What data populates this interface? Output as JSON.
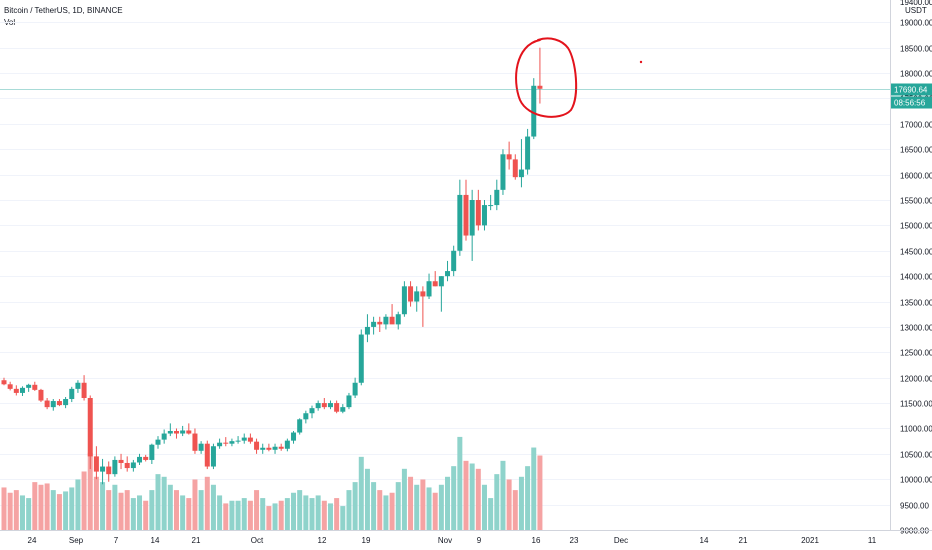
{
  "header": {
    "symbol_line": "Bitcoin / TetherUS, 1D, BINANCE",
    "volume_label": "Vol"
  },
  "price_scale": {
    "currency": "USDT",
    "top_partial_label": "19400.00",
    "last_price_label": "17690.64",
    "countdown_label": "08:56:56"
  },
  "colors": {
    "up": "#26a69a",
    "down": "#ef5350",
    "vol_up": "#8fd3cb",
    "vol_down": "#f5a3a3",
    "annotation": "#e3131c",
    "grid": "#f0f3fa",
    "axis_text": "#131722"
  },
  "annotations": [
    {
      "type": "hand-drawn-circle",
      "around": "last two candles (peak)"
    },
    {
      "type": "dot"
    }
  ],
  "chart_data": {
    "type": "candlestick",
    "title": "Bitcoin / TetherUS, 1D, BINANCE",
    "ylabel": "USDT",
    "ylim": [
      9000,
      19400
    ],
    "y_ticks": [
      9000,
      9500,
      10000,
      10500,
      11000,
      11500,
      12000,
      12500,
      13000,
      13500,
      14000,
      14500,
      15000,
      15500,
      16000,
      16500,
      17000,
      17500,
      18000,
      18500,
      19000
    ],
    "x_ticks": [
      "24",
      "Sep",
      "7",
      "14",
      "21",
      "Oct",
      "12",
      "19",
      "Nov",
      "9",
      "16",
      "23",
      "Dec",
      "14",
      "21",
      "2021",
      "11"
    ],
    "last_price": 17690.64,
    "grid": true,
    "candles": [
      {
        "o": 11950,
        "h": 12000,
        "l": 11850,
        "c": 11870,
        "v": 0.32
      },
      {
        "o": 11870,
        "h": 11920,
        "l": 11750,
        "c": 11780,
        "v": 0.28
      },
      {
        "o": 11780,
        "h": 11850,
        "l": 11650,
        "c": 11700,
        "v": 0.3
      },
      {
        "o": 11700,
        "h": 11830,
        "l": 11640,
        "c": 11800,
        "v": 0.26
      },
      {
        "o": 11800,
        "h": 11880,
        "l": 11720,
        "c": 11860,
        "v": 0.24
      },
      {
        "o": 11860,
        "h": 11920,
        "l": 11740,
        "c": 11760,
        "v": 0.36
      },
      {
        "o": 11760,
        "h": 11780,
        "l": 11520,
        "c": 11550,
        "v": 0.34
      },
      {
        "o": 11550,
        "h": 11600,
        "l": 11380,
        "c": 11420,
        "v": 0.35
      },
      {
        "o": 11420,
        "h": 11580,
        "l": 11350,
        "c": 11540,
        "v": 0.3
      },
      {
        "o": 11540,
        "h": 11580,
        "l": 11440,
        "c": 11460,
        "v": 0.27
      },
      {
        "o": 11460,
        "h": 11620,
        "l": 11400,
        "c": 11580,
        "v": 0.29
      },
      {
        "o": 11580,
        "h": 11820,
        "l": 11520,
        "c": 11780,
        "v": 0.32
      },
      {
        "o": 11780,
        "h": 11950,
        "l": 11700,
        "c": 11900,
        "v": 0.38
      },
      {
        "o": 11900,
        "h": 12050,
        "l": 11550,
        "c": 11600,
        "v": 0.44
      },
      {
        "o": 11600,
        "h": 11650,
        "l": 10200,
        "c": 10450,
        "v": 0.58
      },
      {
        "o": 10450,
        "h": 10650,
        "l": 10000,
        "c": 10150,
        "v": 0.4
      },
      {
        "o": 10150,
        "h": 10400,
        "l": 9900,
        "c": 10250,
        "v": 0.36
      },
      {
        "o": 10250,
        "h": 10350,
        "l": 9950,
        "c": 10100,
        "v": 0.3
      },
      {
        "o": 10100,
        "h": 10450,
        "l": 10050,
        "c": 10380,
        "v": 0.34
      },
      {
        "o": 10380,
        "h": 10500,
        "l": 10200,
        "c": 10320,
        "v": 0.28
      },
      {
        "o": 10320,
        "h": 10450,
        "l": 10150,
        "c": 10220,
        "v": 0.3
      },
      {
        "o": 10220,
        "h": 10380,
        "l": 10150,
        "c": 10330,
        "v": 0.24
      },
      {
        "o": 10330,
        "h": 10500,
        "l": 10280,
        "c": 10440,
        "v": 0.26
      },
      {
        "o": 10440,
        "h": 10480,
        "l": 10350,
        "c": 10380,
        "v": 0.22
      },
      {
        "o": 10380,
        "h": 10700,
        "l": 10300,
        "c": 10680,
        "v": 0.3
      },
      {
        "o": 10680,
        "h": 10850,
        "l": 10600,
        "c": 10780,
        "v": 0.42
      },
      {
        "o": 10780,
        "h": 10980,
        "l": 10700,
        "c": 10900,
        "v": 0.4
      },
      {
        "o": 10900,
        "h": 11100,
        "l": 10850,
        "c": 10950,
        "v": 0.34
      },
      {
        "o": 10950,
        "h": 11000,
        "l": 10800,
        "c": 10900,
        "v": 0.3
      },
      {
        "o": 10900,
        "h": 11050,
        "l": 10850,
        "c": 10960,
        "v": 0.26
      },
      {
        "o": 10960,
        "h": 11100,
        "l": 10880,
        "c": 10900,
        "v": 0.24
      },
      {
        "o": 10900,
        "h": 11000,
        "l": 10500,
        "c": 10560,
        "v": 0.38
      },
      {
        "o": 10560,
        "h": 10750,
        "l": 10500,
        "c": 10700,
        "v": 0.3
      },
      {
        "o": 10700,
        "h": 10760,
        "l": 10200,
        "c": 10250,
        "v": 0.4
      },
      {
        "o": 10250,
        "h": 10700,
        "l": 10200,
        "c": 10650,
        "v": 0.34
      },
      {
        "o": 10650,
        "h": 10800,
        "l": 10600,
        "c": 10720,
        "v": 0.26
      },
      {
        "o": 10720,
        "h": 10830,
        "l": 10650,
        "c": 10700,
        "v": 0.2
      },
      {
        "o": 10700,
        "h": 10800,
        "l": 10650,
        "c": 10750,
        "v": 0.22
      },
      {
        "o": 10750,
        "h": 10850,
        "l": 10700,
        "c": 10760,
        "v": 0.22
      },
      {
        "o": 10760,
        "h": 10900,
        "l": 10700,
        "c": 10820,
        "v": 0.24
      },
      {
        "o": 10820,
        "h": 10900,
        "l": 10700,
        "c": 10740,
        "v": 0.22
      },
      {
        "o": 10740,
        "h": 10800,
        "l": 10500,
        "c": 10580,
        "v": 0.3
      },
      {
        "o": 10580,
        "h": 10700,
        "l": 10500,
        "c": 10620,
        "v": 0.24
      },
      {
        "o": 10620,
        "h": 10700,
        "l": 10550,
        "c": 10580,
        "v": 0.18
      },
      {
        "o": 10580,
        "h": 10700,
        "l": 10500,
        "c": 10640,
        "v": 0.2
      },
      {
        "o": 10640,
        "h": 10700,
        "l": 10560,
        "c": 10600,
        "v": 0.22
      },
      {
        "o": 10600,
        "h": 10800,
        "l": 10550,
        "c": 10760,
        "v": 0.24
      },
      {
        "o": 10760,
        "h": 10950,
        "l": 10700,
        "c": 10920,
        "v": 0.28
      },
      {
        "o": 10920,
        "h": 11200,
        "l": 10880,
        "c": 11180,
        "v": 0.3
      },
      {
        "o": 11180,
        "h": 11350,
        "l": 11100,
        "c": 11300,
        "v": 0.26
      },
      {
        "o": 11300,
        "h": 11450,
        "l": 11200,
        "c": 11400,
        "v": 0.24
      },
      {
        "o": 11400,
        "h": 11550,
        "l": 11350,
        "c": 11500,
        "v": 0.26
      },
      {
        "o": 11500,
        "h": 11600,
        "l": 11380,
        "c": 11420,
        "v": 0.22
      },
      {
        "o": 11420,
        "h": 11550,
        "l": 11380,
        "c": 11500,
        "v": 0.2
      },
      {
        "o": 11500,
        "h": 11550,
        "l": 11300,
        "c": 11330,
        "v": 0.24
      },
      {
        "o": 11330,
        "h": 11480,
        "l": 11300,
        "c": 11420,
        "v": 0.18
      },
      {
        "o": 11420,
        "h": 11700,
        "l": 11380,
        "c": 11650,
        "v": 0.3
      },
      {
        "o": 11650,
        "h": 12000,
        "l": 11600,
        "c": 11900,
        "v": 0.36
      },
      {
        "o": 11900,
        "h": 12950,
        "l": 11850,
        "c": 12850,
        "v": 0.55
      },
      {
        "o": 12850,
        "h": 13250,
        "l": 12700,
        "c": 13000,
        "v": 0.46
      },
      {
        "o": 13000,
        "h": 13200,
        "l": 12850,
        "c": 13100,
        "v": 0.36
      },
      {
        "o": 13100,
        "h": 13200,
        "l": 12900,
        "c": 13050,
        "v": 0.3
      },
      {
        "o": 13050,
        "h": 13250,
        "l": 12950,
        "c": 13200,
        "v": 0.26
      },
      {
        "o": 13200,
        "h": 13450,
        "l": 13100,
        "c": 13050,
        "v": 0.28
      },
      {
        "o": 13050,
        "h": 13300,
        "l": 12950,
        "c": 13250,
        "v": 0.36
      },
      {
        "o": 13250,
        "h": 13900,
        "l": 13200,
        "c": 13800,
        "v": 0.46
      },
      {
        "o": 13800,
        "h": 13900,
        "l": 13400,
        "c": 13500,
        "v": 0.4
      },
      {
        "o": 13500,
        "h": 13800,
        "l": 13300,
        "c": 13700,
        "v": 0.34
      },
      {
        "o": 13700,
        "h": 13800,
        "l": 13000,
        "c": 13600,
        "v": 0.38
      },
      {
        "o": 13600,
        "h": 14050,
        "l": 13550,
        "c": 13900,
        "v": 0.32
      },
      {
        "o": 13900,
        "h": 14100,
        "l": 13800,
        "c": 13800,
        "v": 0.28
      },
      {
        "o": 13800,
        "h": 14000,
        "l": 13300,
        "c": 14000,
        "v": 0.34
      },
      {
        "o": 14000,
        "h": 14300,
        "l": 13900,
        "c": 14100,
        "v": 0.4
      },
      {
        "o": 14100,
        "h": 14600,
        "l": 14000,
        "c": 14500,
        "v": 0.48
      },
      {
        "o": 14500,
        "h": 15900,
        "l": 14400,
        "c": 15600,
        "v": 0.7
      },
      {
        "o": 15600,
        "h": 15900,
        "l": 14700,
        "c": 14800,
        "v": 0.52
      },
      {
        "o": 14800,
        "h": 15700,
        "l": 14300,
        "c": 15500,
        "v": 0.5
      },
      {
        "o": 15500,
        "h": 15700,
        "l": 14900,
        "c": 15000,
        "v": 0.46
      },
      {
        "o": 15000,
        "h": 15500,
        "l": 14900,
        "c": 15400,
        "v": 0.34
      },
      {
        "o": 15400,
        "h": 15600,
        "l": 15300,
        "c": 15400,
        "v": 0.24
      },
      {
        "o": 15400,
        "h": 15900,
        "l": 15300,
        "c": 15700,
        "v": 0.42
      },
      {
        "o": 15700,
        "h": 16500,
        "l": 15600,
        "c": 16400,
        "v": 0.52
      },
      {
        "o": 16400,
        "h": 16650,
        "l": 16100,
        "c": 16300,
        "v": 0.38
      },
      {
        "o": 16300,
        "h": 16400,
        "l": 15900,
        "c": 15950,
        "v": 0.3
      },
      {
        "o": 15950,
        "h": 16700,
        "l": 15750,
        "c": 16100,
        "v": 0.4
      },
      {
        "o": 16100,
        "h": 16900,
        "l": 16000,
        "c": 16750,
        "v": 0.48
      },
      {
        "o": 16750,
        "h": 17900,
        "l": 16700,
        "c": 17750,
        "v": 0.62
      },
      {
        "o": 17750,
        "h": 18500,
        "l": 17400,
        "c": 17690.64,
        "v": 0.56
      }
    ]
  }
}
